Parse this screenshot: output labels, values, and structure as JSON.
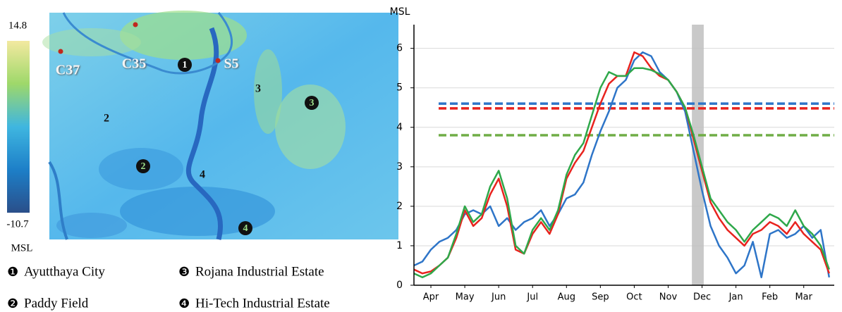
{
  "map": {
    "stations": [
      {
        "label": "C37"
      },
      {
        "label": "C35"
      },
      {
        "label": "S5"
      }
    ],
    "markers": [
      "1",
      "2",
      "3",
      "4"
    ],
    "numbers": [
      "2",
      "3",
      "4"
    ]
  },
  "colorbar": {
    "max": 14.8,
    "min": -10.7,
    "label": "MSL"
  },
  "legend": [
    {
      "marker": "❶",
      "label": "Ayutthaya City"
    },
    {
      "marker": "❷",
      "label": "Paddy Field"
    },
    {
      "marker": "❸",
      "label": "Rojana Industrial Estate"
    },
    {
      "marker": "❹",
      "label": "Hi-Tech Industrial Estate"
    }
  ],
  "chart_data": {
    "type": "line",
    "ylabel": "MSL",
    "x": [
      0,
      0.25,
      0.5,
      0.75,
      1,
      1.25,
      1.5,
      1.75,
      2,
      2.25,
      2.5,
      2.75,
      3,
      3.25,
      3.5,
      3.75,
      4,
      4.25,
      4.5,
      4.75,
      5,
      5.25,
      5.5,
      5.75,
      6,
      6.25,
      6.5,
      6.75,
      7,
      7.25,
      7.5,
      7.75,
      8,
      8.25,
      8.5,
      8.75,
      9,
      9.25,
      9.5,
      9.75,
      10,
      10.25,
      10.5,
      10.75,
      11,
      11.25,
      11.5,
      11.75,
      12,
      12.25
    ],
    "series": [
      {
        "color": "#2e75c8",
        "values": [
          0.5,
          0.6,
          0.9,
          1.1,
          1.2,
          1.4,
          1.8,
          1.9,
          1.8,
          2.0,
          1.5,
          1.7,
          1.4,
          1.6,
          1.7,
          1.9,
          1.5,
          1.8,
          2.2,
          2.3,
          2.6,
          3.3,
          3.9,
          4.4,
          5.0,
          5.2,
          5.7,
          5.9,
          5.8,
          5.4,
          5.2,
          4.9,
          4.4,
          3.4,
          2.4,
          1.5,
          1.0,
          0.7,
          0.3,
          0.5,
          1.1,
          0.2,
          1.3,
          1.4,
          1.2,
          1.3,
          1.5,
          1.2,
          1.4,
          0.2
        ]
      },
      {
        "color": "#e8231e",
        "values": [
          0.4,
          0.3,
          0.35,
          0.5,
          0.7,
          1.2,
          1.9,
          1.5,
          1.7,
          2.3,
          2.7,
          2.0,
          0.9,
          0.8,
          1.3,
          1.6,
          1.3,
          1.8,
          2.7,
          3.1,
          3.4,
          4.0,
          4.6,
          5.1,
          5.3,
          5.3,
          5.9,
          5.8,
          5.5,
          5.3,
          5.2,
          4.9,
          4.5,
          3.7,
          2.9,
          2.1,
          1.7,
          1.4,
          1.2,
          1.0,
          1.3,
          1.4,
          1.6,
          1.5,
          1.3,
          1.6,
          1.3,
          1.1,
          0.9,
          0.3
        ]
      },
      {
        "color": "#2ea84a",
        "values": [
          0.3,
          0.2,
          0.3,
          0.5,
          0.7,
          1.3,
          2.0,
          1.6,
          1.8,
          2.5,
          2.9,
          2.2,
          1.0,
          0.8,
          1.4,
          1.7,
          1.4,
          1.9,
          2.8,
          3.3,
          3.6,
          4.3,
          5.0,
          5.4,
          5.3,
          5.3,
          5.5,
          5.5,
          5.45,
          5.35,
          5.2,
          4.9,
          4.5,
          3.8,
          3.0,
          2.2,
          1.9,
          1.6,
          1.4,
          1.1,
          1.4,
          1.6,
          1.8,
          1.7,
          1.5,
          1.9,
          1.5,
          1.3,
          1.0,
          0.4
        ]
      }
    ],
    "reference_lines": [
      {
        "value": 4.6,
        "color": "#2e75c8"
      },
      {
        "value": 4.48,
        "color": "#e8231e"
      },
      {
        "value": 3.8,
        "color": "#70ad47"
      }
    ],
    "highlight_x": [
      8.2,
      8.55
    ],
    "xlim": [
      0,
      12.4
    ],
    "xticks": [
      {
        "value": 0.5,
        "label": "Apr"
      },
      {
        "value": 1.5,
        "label": "May"
      },
      {
        "value": 2.5,
        "label": "Jun"
      },
      {
        "value": 3.5,
        "label": "Jul"
      },
      {
        "value": 4.5,
        "label": "Aug"
      },
      {
        "value": 5.5,
        "label": "Sep"
      },
      {
        "value": 6.5,
        "label": "Oct"
      },
      {
        "value": 7.5,
        "label": "Nov"
      },
      {
        "value": 8.5,
        "label": "Dec"
      },
      {
        "value": 9.5,
        "label": "Jan"
      },
      {
        "value": 10.5,
        "label": "Feb"
      },
      {
        "value": 11.5,
        "label": "Mar"
      }
    ],
    "ylim": [
      0,
      6.6
    ],
    "yticks": [
      0,
      1,
      2,
      3,
      4,
      5,
      6
    ],
    "grid": true
  }
}
